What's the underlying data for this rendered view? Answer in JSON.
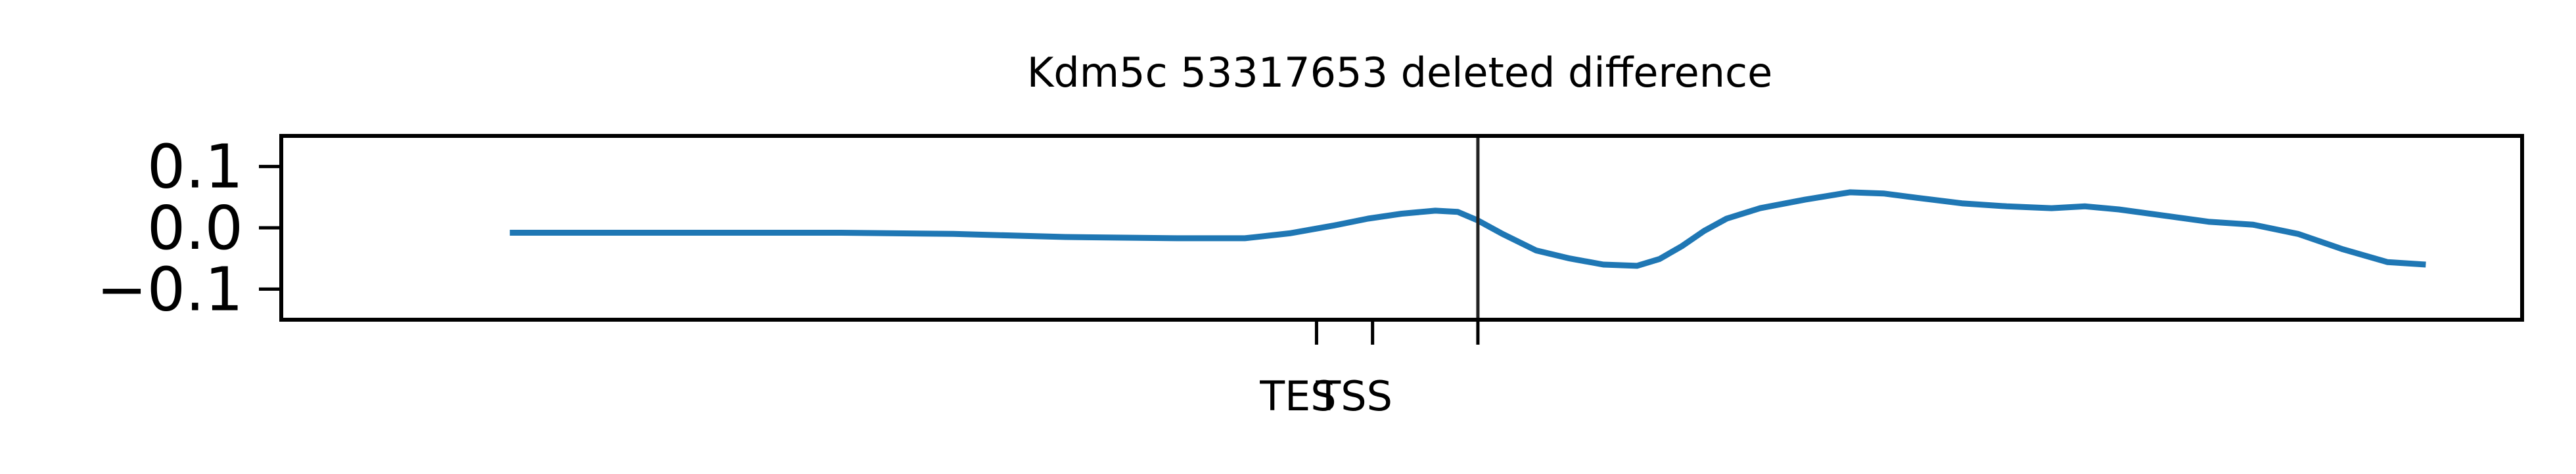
{
  "chart_data": {
    "type": "line",
    "title": "Kdm5c 53317653 deleted difference",
    "xlabel": "",
    "ylabel": "",
    "xlim": [
      0,
      1000
    ],
    "ylim": [
      -0.15,
      0.15
    ],
    "grid": false,
    "y_ticks": [
      {
        "value": 0.1,
        "label": "0.1"
      },
      {
        "value": 0.0,
        "label": "0.0"
      },
      {
        "value": -0.1,
        "label": "−0.1"
      }
    ],
    "x_ticks": [
      {
        "value": 462,
        "label": "TES"
      },
      {
        "value": 487,
        "label": "TSS"
      },
      {
        "value": 534,
        "label": ""
      }
    ],
    "vline_x": 534,
    "series": [
      {
        "color": "#1f77b4",
        "x": [
          102,
          150,
          200,
          250,
          300,
          350,
          400,
          430,
          450,
          470,
          485,
          500,
          515,
          525,
          534,
          545,
          560,
          575,
          590,
          605,
          615,
          625,
          635,
          645,
          660,
          680,
          700,
          715,
          730,
          750,
          770,
          790,
          805,
          820,
          840,
          860,
          880,
          900,
          920,
          940,
          957
        ],
        "y": [
          -0.008,
          -0.008,
          -0.008,
          -0.008,
          -0.01,
          -0.015,
          -0.017,
          -0.017,
          -0.009,
          0.004,
          0.015,
          0.023,
          0.028,
          0.026,
          0.012,
          -0.01,
          -0.037,
          -0.05,
          -0.06,
          -0.062,
          -0.051,
          -0.03,
          -0.005,
          0.015,
          0.032,
          0.046,
          0.058,
          0.056,
          0.049,
          0.04,
          0.035,
          0.032,
          0.035,
          0.03,
          0.02,
          0.01,
          0.005,
          -0.01,
          -0.035,
          -0.056,
          -0.06
        ]
      }
    ]
  }
}
